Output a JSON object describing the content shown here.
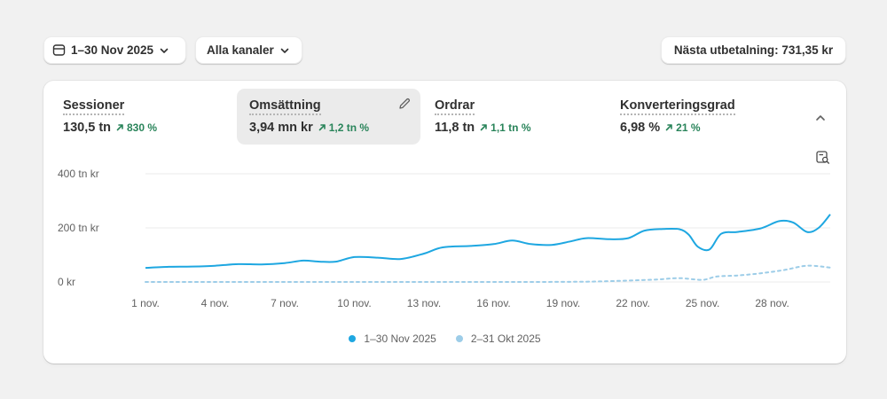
{
  "toolbar": {
    "date_range": "1–30 Nov 2025",
    "channel": "Alla kanaler",
    "payout": "Nästa utbetalning: 731,35 kr"
  },
  "metrics": [
    {
      "label": "Sessioner",
      "value": "130,5 tn",
      "change": "830 %"
    },
    {
      "label": "Omsättning",
      "value": "3,94 mn kr",
      "change": "1,2 tn %"
    },
    {
      "label": "Ordrar",
      "value": "11,8 tn",
      "change": "1,1 tn %"
    },
    {
      "label": "Konverteringsgrad",
      "value": "6,98 %",
      "change": "21 %"
    }
  ],
  "icons": {
    "date": "calendar-icon",
    "dropdown": "chevron-down-icon",
    "edit": "pencil-icon",
    "collapse": "chevron-up-icon",
    "zoom": "zoom-icon",
    "trend": "arrow-up-right-icon"
  },
  "colors": {
    "current": "#1ea7e1",
    "previous": "#9dcde8",
    "positive": "#29845a",
    "grid": "#ebebeb"
  },
  "chart_data": {
    "type": "line",
    "y_ticks": [
      "0 kr",
      "200 tn kr",
      "400 tn kr"
    ],
    "ylim": [
      0,
      400
    ],
    "x_tick_labels": [
      "1 nov.",
      "4 nov.",
      "7 nov.",
      "10 nov.",
      "13 nov.",
      "16 nov.",
      "19 nov.",
      "22 nov.",
      "25 nov.",
      "28 nov."
    ],
    "x_tick_days": [
      1,
      4,
      7,
      10,
      13,
      16,
      19,
      22,
      25,
      28
    ],
    "x_range": [
      1,
      30.5
    ],
    "series": [
      {
        "name": "1–30 Nov 2025",
        "style": "solid",
        "points": [
          [
            1,
            52
          ],
          [
            2,
            56
          ],
          [
            3,
            57
          ],
          [
            4,
            60
          ],
          [
            5,
            66
          ],
          [
            6,
            65
          ],
          [
            7,
            70
          ],
          [
            7.8,
            79
          ],
          [
            8.5,
            75
          ],
          [
            9.2,
            75
          ],
          [
            10,
            92
          ],
          [
            11,
            90
          ],
          [
            12,
            85
          ],
          [
            13,
            105
          ],
          [
            13.8,
            128
          ],
          [
            15,
            133
          ],
          [
            16,
            140
          ],
          [
            16.8,
            153
          ],
          [
            17.6,
            140
          ],
          [
            18.5,
            137
          ],
          [
            19.3,
            150
          ],
          [
            20,
            162
          ],
          [
            21,
            158
          ],
          [
            21.8,
            162
          ],
          [
            22.5,
            190
          ],
          [
            23.3,
            196
          ],
          [
            24,
            195
          ],
          [
            24.4,
            175
          ],
          [
            24.8,
            130
          ],
          [
            25.3,
            120
          ],
          [
            25.8,
            178
          ],
          [
            26.5,
            185
          ],
          [
            27.5,
            198
          ],
          [
            28.3,
            225
          ],
          [
            28.9,
            220
          ],
          [
            29.5,
            185
          ],
          [
            30,
            200
          ],
          [
            30.5,
            250
          ]
        ]
      },
      {
        "name": "2–31 Okt 2025",
        "style": "dashed",
        "points": [
          [
            1,
            0
          ],
          [
            5,
            0
          ],
          [
            10,
            0
          ],
          [
            15,
            0
          ],
          [
            18,
            0
          ],
          [
            20,
            1
          ],
          [
            21,
            3
          ],
          [
            22,
            6
          ],
          [
            23,
            9
          ],
          [
            24,
            14
          ],
          [
            25,
            8
          ],
          [
            25.6,
            20
          ],
          [
            26.5,
            24
          ],
          [
            27.5,
            32
          ],
          [
            28.5,
            44
          ],
          [
            29.5,
            60
          ],
          [
            30.5,
            53
          ]
        ]
      }
    ]
  }
}
